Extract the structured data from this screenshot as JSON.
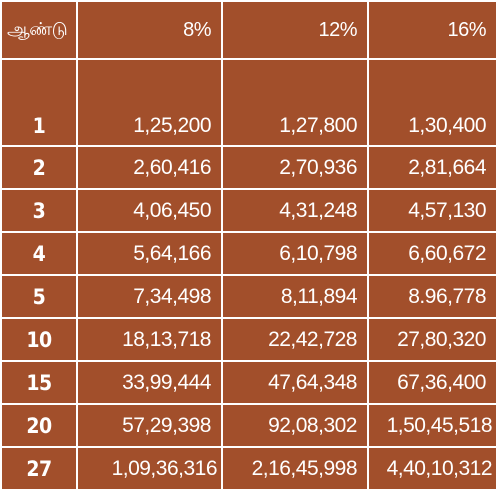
{
  "table": {
    "headers": [
      "ஆண்டு",
      "8%",
      "12%",
      "16%"
    ],
    "rows": [
      [
        "1",
        "1,25,200",
        "1,27,800",
        "1,30,400"
      ],
      [
        "2",
        "2,60,416",
        "2,70,936",
        "2,81,664"
      ],
      [
        "3",
        "4,06,450",
        "4,31,248",
        "4,57,130"
      ],
      [
        "4",
        "5,64,166",
        "6,10,798",
        "6,60,672"
      ],
      [
        "5",
        "7,34,498",
        "8,11,894",
        "8.96,778"
      ],
      [
        "10",
        "18,13,718",
        "22,42,728",
        "27,80,320"
      ],
      [
        "15",
        "33,99,444",
        "47,64,348",
        "67,36,400"
      ],
      [
        "20",
        "57,29,398",
        "92,08,302",
        "1,50,45,518"
      ],
      [
        "27",
        "1,09,36,316",
        "2,16,45,998",
        "4,40,10,312"
      ]
    ]
  },
  "colors": {
    "cell_background": "#a24f2b",
    "grid_lines": "#ffffff",
    "text": "#ffffff"
  }
}
